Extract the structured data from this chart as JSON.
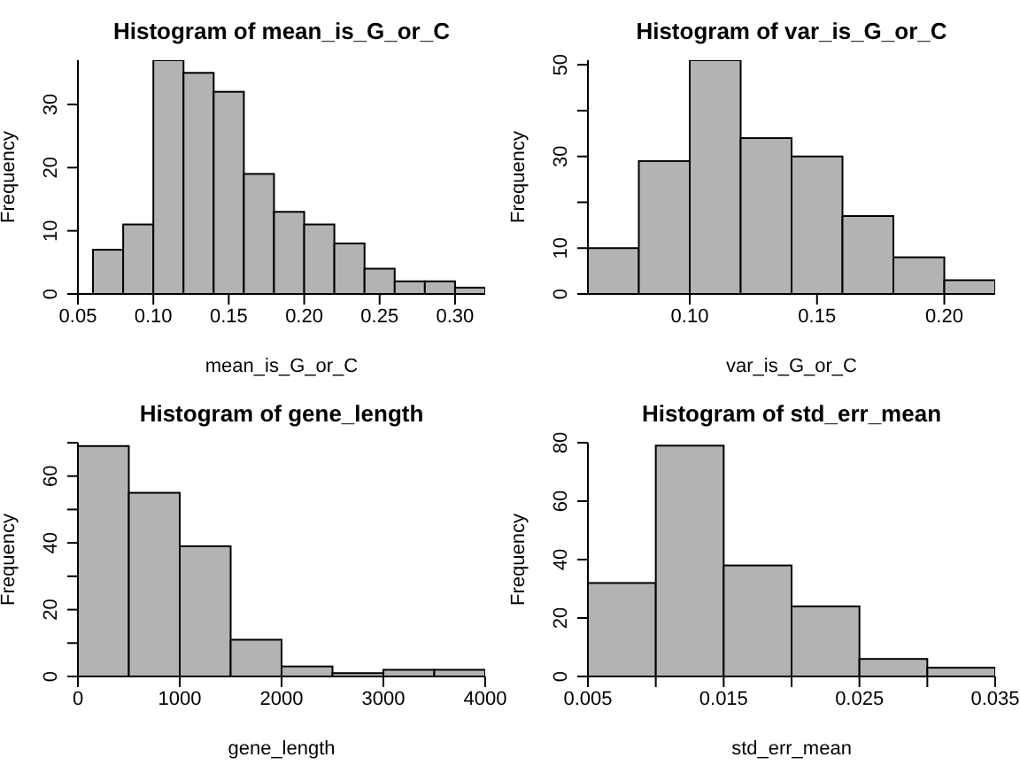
{
  "chart_data": [
    {
      "type": "histogram",
      "title": "Histogram of mean_is_G_or_C",
      "xlabel": "mean_is_G_or_C",
      "ylabel": "Frequency",
      "color": "#b3b3b3",
      "bins": [
        0.06,
        0.08,
        0.1,
        0.12,
        0.14,
        0.16,
        0.18,
        0.2,
        0.22,
        0.24,
        0.26,
        0.28,
        0.3,
        0.32
      ],
      "values": [
        7,
        11,
        37,
        35,
        32,
        19,
        13,
        11,
        8,
        4,
        2,
        2,
        1
      ],
      "xlim": [
        0.05,
        0.32
      ],
      "xticks": [
        {
          "value": 0.05,
          "label": "0.05"
        },
        {
          "value": 0.1,
          "label": "0.10"
        },
        {
          "value": 0.15,
          "label": "0.15"
        },
        {
          "value": 0.2,
          "label": "0.20"
        },
        {
          "value": 0.25,
          "label": "0.25"
        },
        {
          "value": 0.3,
          "label": "0.30"
        }
      ],
      "ylim": [
        0,
        37
      ],
      "yticks": [
        0,
        10,
        20,
        30
      ]
    },
    {
      "type": "histogram",
      "title": "Histogram of var_is_G_or_C",
      "xlabel": "var_is_G_or_C",
      "ylabel": "Frequency",
      "color": "#b3b3b3",
      "bins": [
        0.06,
        0.08,
        0.1,
        0.12,
        0.14,
        0.16,
        0.18,
        0.2,
        0.22
      ],
      "values": [
        10,
        29,
        51,
        34,
        30,
        17,
        8,
        3
      ],
      "xlim": [
        0.06,
        0.22
      ],
      "xticks": [
        {
          "value": 0.1,
          "label": "0.10"
        },
        {
          "value": 0.15,
          "label": "0.15"
        },
        {
          "value": 0.2,
          "label": "0.20"
        }
      ],
      "ylim": [
        0,
        51
      ],
      "yticks": [
        0,
        10,
        {
          "value": 20,
          "label": null
        },
        30,
        {
          "value": 40,
          "label": null
        },
        50
      ]
    },
    {
      "type": "histogram",
      "title": "Histogram of gene_length",
      "xlabel": "gene_length",
      "ylabel": "Frequency",
      "color": "#b3b3b3",
      "bins": [
        0,
        500,
        1000,
        1500,
        2000,
        2500,
        3000,
        3500,
        4000
      ],
      "values": [
        69,
        55,
        39,
        11,
        3,
        1,
        2,
        2
      ],
      "xlim": [
        0,
        4000
      ],
      "xticks": [
        0,
        1000,
        2000,
        3000,
        4000
      ],
      "ylim": [
        0,
        70
      ],
      "yticks": [
        0,
        {
          "value": 10,
          "label": null
        },
        20,
        {
          "value": 30,
          "label": null
        },
        40,
        {
          "value": 50,
          "label": null
        },
        60,
        {
          "value": 70,
          "label": null
        }
      ]
    },
    {
      "type": "histogram",
      "title": "Histogram of std_err_mean",
      "xlabel": "std_err_mean",
      "ylabel": "Frequency",
      "color": "#b3b3b3",
      "bins": [
        0.005,
        0.01,
        0.015,
        0.02,
        0.025,
        0.03,
        0.035
      ],
      "values": [
        32,
        79,
        38,
        24,
        6,
        3
      ],
      "xlim": [
        0.005,
        0.035
      ],
      "xticks": [
        {
          "value": 0.005,
          "label": "0.005"
        },
        {
          "value": 0.01,
          "label": null
        },
        {
          "value": 0.015,
          "label": "0.015"
        },
        {
          "value": 0.02,
          "label": null
        },
        {
          "value": 0.025,
          "label": "0.025"
        },
        {
          "value": 0.03,
          "label": null
        },
        {
          "value": 0.035,
          "label": "0.035"
        }
      ],
      "ylim": [
        0,
        80
      ],
      "yticks": [
        0,
        20,
        40,
        60,
        80
      ]
    }
  ]
}
